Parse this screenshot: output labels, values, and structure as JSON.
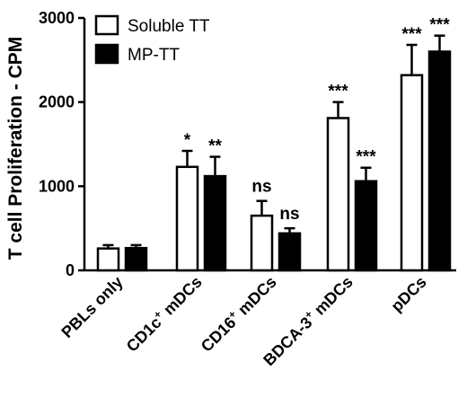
{
  "chart_data": {
    "type": "bar",
    "ylabel": "T cell Proliferation - CPM",
    "xlabel": "",
    "ylim": [
      0,
      3000
    ],
    "yticks": [
      "0",
      "1000",
      "2000",
      "3000"
    ],
    "ytick_values": [
      0,
      1000,
      2000,
      3000
    ],
    "legend_position": "top-left",
    "categories": [
      {
        "base": "PBLs only",
        "sup": "",
        "suffix": ""
      },
      {
        "base": "CD1c",
        "sup": "+",
        "suffix": " mDCs"
      },
      {
        "base": "CD16",
        "sup": "+",
        "suffix": " mDCs"
      },
      {
        "base": "BDCA-3",
        "sup": "+",
        "suffix": " mDCs"
      },
      {
        "base": "pDCs",
        "sup": "",
        "suffix": ""
      }
    ],
    "series": [
      {
        "name": "Soluble TT",
        "fill": "#ffffff",
        "values": [
          260,
          1230,
          650,
          1810,
          2320
        ],
        "errors": [
          40,
          190,
          175,
          190,
          360
        ],
        "annotations": [
          "",
          "*",
          "ns",
          "***",
          "***"
        ]
      },
      {
        "name": "MP-TT",
        "fill": "#000000",
        "values": [
          265,
          1120,
          440,
          1060,
          2600
        ],
        "errors": [
          35,
          230,
          60,
          160,
          190
        ],
        "annotations": [
          "",
          "**",
          "ns",
          "***",
          "***"
        ]
      }
    ]
  }
}
